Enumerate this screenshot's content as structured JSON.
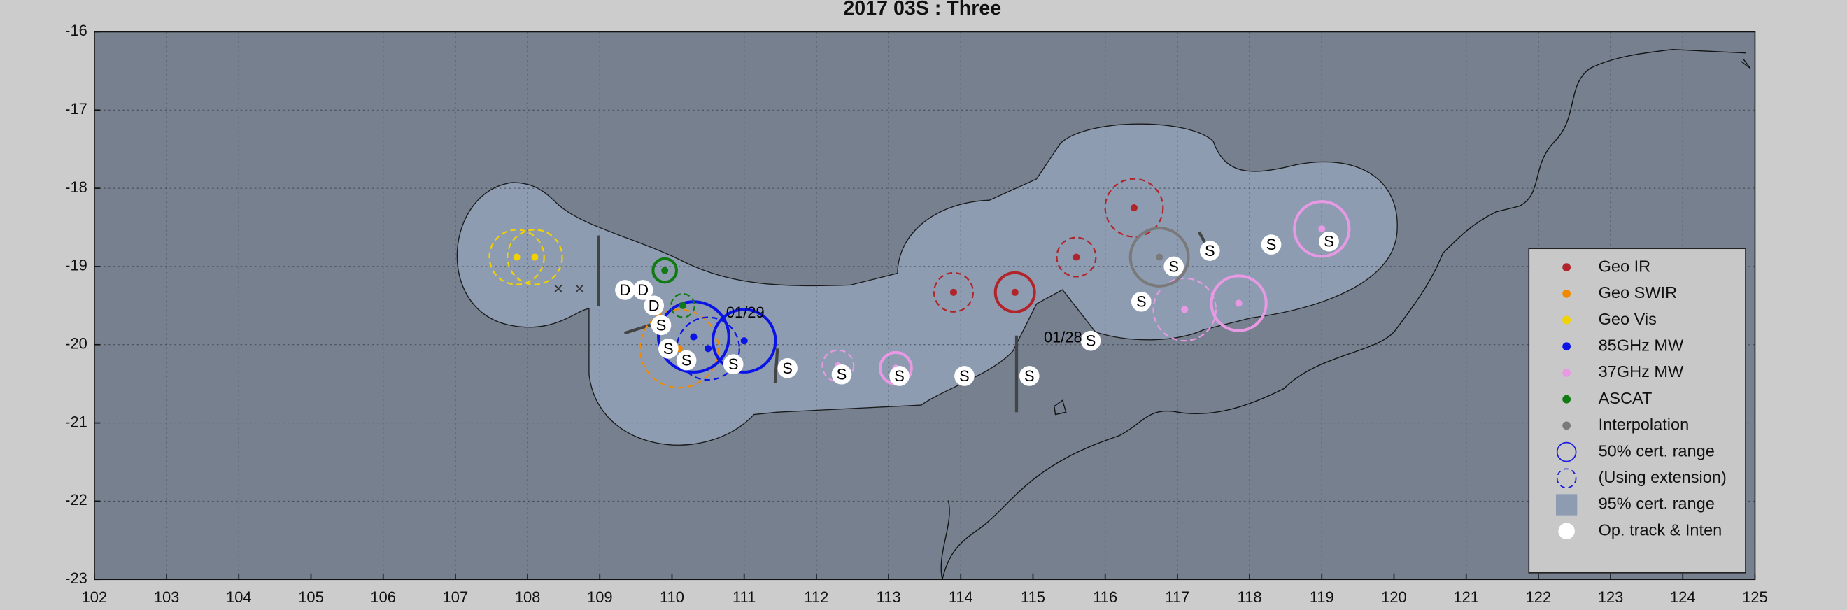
{
  "chart_data": {
    "type": "fixmap",
    "title": "2017  03S :  Three",
    "xlim": [
      102,
      125
    ],
    "ylim": [
      -23,
      -16
    ],
    "xticks": [
      102,
      103,
      104,
      105,
      106,
      107,
      108,
      109,
      110,
      111,
      112,
      113,
      114,
      115,
      116,
      117,
      118,
      119,
      120,
      121,
      122,
      123,
      124,
      125
    ],
    "yticks": [
      -23,
      -22,
      -21,
      -20,
      -19,
      -18,
      -17,
      -16
    ],
    "grid": true,
    "series": [
      {
        "name": "Geo IR",
        "color": "#b0242a",
        "x": [
          113.9,
          114.75,
          115.6,
          116.4
        ],
        "y": [
          -19.33,
          -19.33,
          -18.88,
          -18.25
        ],
        "r": [
          0.25,
          0.25,
          0.25,
          0.37
        ],
        "dashed": [
          true,
          false,
          true,
          true
        ]
      },
      {
        "name": "Geo SWIR",
        "color": "#ef8a00",
        "x": [
          110.1
        ],
        "y": [
          -20.05
        ],
        "r": [
          0.5
        ],
        "dashed": [
          true
        ]
      },
      {
        "name": "Geo Vis",
        "color": "#f2d100",
        "x": [
          107.85,
          108.1
        ],
        "y": [
          -18.88,
          -18.88
        ],
        "r": [
          0.35,
          0.35
        ],
        "dashed": [
          true,
          true
        ]
      },
      {
        "name": "85GHz MW",
        "color": "#0a14e6",
        "x": [
          110.3,
          110.5,
          111.0
        ],
        "y": [
          -19.9,
          -20.05,
          -19.95
        ],
        "r": [
          0.45,
          0.4,
          0.4
        ],
        "dashed": [
          false,
          true,
          false
        ]
      },
      {
        "name": "37GHz MW",
        "color": "#e79ae3",
        "x": [
          112.3,
          113.1,
          117.1,
          117.85,
          119.0
        ],
        "y": [
          -20.27,
          -20.3,
          -19.55,
          -19.47,
          -18.52
        ],
        "r": [
          0.2,
          0.2,
          0.4,
          0.35,
          0.35
        ],
        "dashed": [
          true,
          false,
          true,
          false,
          false
        ]
      },
      {
        "name": "ASCAT",
        "color": "#127a12",
        "x": [
          109.9,
          110.15
        ],
        "y": [
          -19.05,
          -19.5
        ],
        "r": [
          0.15,
          0.15
        ],
        "dashed": [
          false,
          true
        ]
      },
      {
        "name": "Interpolation",
        "color": "#7a7a7a",
        "x": [
          116.75
        ],
        "y": [
          -18.88
        ],
        "r": [
          0.37
        ],
        "dashed": [
          false
        ]
      }
    ],
    "op_track": {
      "name": "Op. track & Inten",
      "x": [
        109.35,
        109.6,
        109.75,
        109.85,
        109.95,
        110.2,
        110.85,
        111.6,
        112.35,
        113.15,
        114.05,
        114.95,
        115.8,
        116.5,
        116.95,
        117.45,
        118.3,
        119.1
      ],
      "y": [
        -19.3,
        -19.3,
        -19.5,
        -19.75,
        -20.05,
        -20.2,
        -20.25,
        -20.3,
        -20.38,
        -20.4,
        -20.4,
        -20.4,
        -19.95,
        -19.45,
        -19.0,
        -18.8,
        -18.72,
        -18.68
      ],
      "labels": [
        "D",
        "D",
        "D",
        "S",
        "S",
        "S",
        "S",
        "S",
        "S",
        "S",
        "S",
        "S",
        "S",
        "S",
        "S",
        "S",
        "S",
        "S"
      ]
    },
    "annotations": [
      {
        "text": "01/29",
        "x": 110.75,
        "y": -19.6
      },
      {
        "text": "01/28",
        "x": 115.15,
        "y": -19.92
      }
    ],
    "legend_extra": [
      "50% cert. range",
      "(Using extension)",
      "95% cert. range"
    ],
    "legend": "right"
  }
}
